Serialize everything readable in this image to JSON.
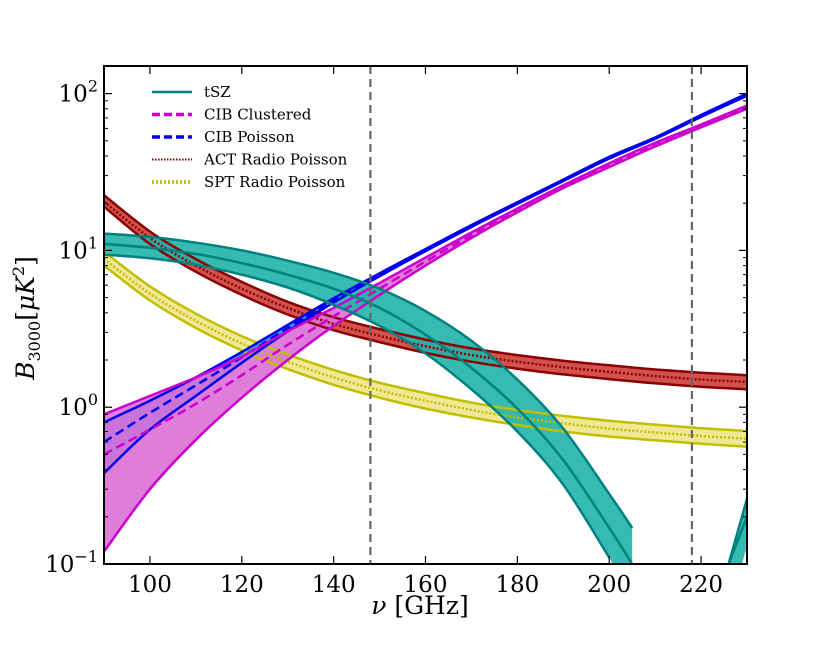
{
  "chart_data": {
    "type": "line",
    "title": "",
    "xlabel": "ν [GHz]",
    "ylabel": "B3000[μK2]",
    "ylabel_parts": {
      "symbol": "B",
      "subscript": "3000",
      "open": "[",
      "unit": "μK",
      "exponent": "2",
      "close": "]"
    },
    "xlabel_parts": {
      "symbol": "ν",
      "unit": " [GHz]"
    },
    "xscale": "linear",
    "yscale": "log",
    "xlim": [
      90,
      230
    ],
    "ylim": [
      0.1,
      150
    ],
    "x_ticks": [
      {
        "value": 100,
        "label": "100"
      },
      {
        "value": 120,
        "label": "120"
      },
      {
        "value": 140,
        "label": "140"
      },
      {
        "value": 160,
        "label": "160"
      },
      {
        "value": 180,
        "label": "180"
      },
      {
        "value": 200,
        "label": "200"
      },
      {
        "value": 220,
        "label": "220"
      }
    ],
    "y_ticks": [
      {
        "value": 0.1,
        "base": "10",
        "exp": "−1"
      },
      {
        "value": 1,
        "base": "10",
        "exp": "0"
      },
      {
        "value": 10,
        "base": "10",
        "exp": "1"
      },
      {
        "value": 100,
        "base": "10",
        "exp": "2"
      }
    ],
    "vlines": [
      148,
      218
    ],
    "legend_position": "top-left",
    "x": [
      90,
      100,
      110,
      120,
      130,
      140,
      150,
      160,
      170,
      180,
      190,
      200,
      210,
      220,
      230
    ],
    "series": [
      {
        "name": "tSZ",
        "line_style": "solid",
        "color": "#008080",
        "band_fill": "#20b2aa",
        "x": [
          90,
          100,
          110,
          120,
          130,
          140,
          150,
          160,
          170,
          180,
          190,
          200,
          205,
          215,
          220,
          226,
          230
        ],
        "center": [
          11.0,
          10.4,
          9.5,
          8.3,
          7.0,
          5.7,
          4.3,
          2.9,
          1.78,
          0.98,
          0.46,
          0.17,
          0.1,
          null,
          null,
          0.1,
          0.2
        ],
        "lower": [
          9.4,
          8.9,
          8.1,
          7.0,
          5.8,
          4.5,
          3.3,
          2.2,
          1.3,
          0.7,
          0.32,
          0.11,
          null,
          null,
          null,
          null,
          0.13
        ],
        "upper": [
          12.8,
          12.2,
          11.2,
          10.0,
          8.6,
          7.2,
          5.7,
          4.1,
          2.65,
          1.5,
          0.73,
          0.28,
          0.17,
          null,
          null,
          0.1,
          0.26
        ]
      },
      {
        "name": "CIB Clustered",
        "line_style": "dashed",
        "color": "#cc00cc",
        "band_fill": "#da70d6",
        "x": [
          90,
          100,
          110,
          120,
          130,
          140,
          150,
          160,
          170,
          180,
          190,
          200,
          210,
          220,
          230
        ],
        "center": [
          0.5,
          0.72,
          1.05,
          1.6,
          2.5,
          3.8,
          5.7,
          8.5,
          12.5,
          18.0,
          25.5,
          35.0,
          47.0,
          62.0,
          82.0
        ],
        "lower": [
          0.12,
          0.3,
          0.62,
          1.15,
          2.0,
          3.3,
          5.2,
          8.0,
          12.0,
          17.5,
          25.0,
          34.0,
          46.0,
          61.0,
          80.0
        ],
        "upper": [
          0.9,
          1.18,
          1.55,
          2.1,
          3.05,
          4.3,
          6.2,
          9.0,
          13.0,
          18.5,
          26.0,
          36.0,
          48.5,
          63.5,
          84.0
        ]
      },
      {
        "name": "CIB Poisson",
        "line_style": "dashed",
        "color": "#0000ee",
        "band_fill": "#1e90ff",
        "x": [
          90,
          100,
          110,
          120,
          130,
          140,
          150,
          160,
          170,
          180,
          190,
          200,
          210,
          220,
          230
        ],
        "center": [
          0.6,
          0.92,
          1.38,
          2.08,
          3.2,
          4.8,
          7.0,
          10.0,
          14.3,
          20.0,
          28.0,
          39.0,
          52.0,
          72.0,
          98.0
        ],
        "lower": [
          0.38,
          0.72,
          1.18,
          1.92,
          3.05,
          4.65,
          6.85,
          9.9,
          14.1,
          19.8,
          27.7,
          38.5,
          51.5,
          71.0,
          97.0
        ],
        "upper": [
          0.8,
          1.1,
          1.55,
          2.25,
          3.35,
          4.95,
          7.15,
          10.2,
          14.5,
          20.3,
          28.3,
          39.5,
          52.5,
          73.0,
          100.0
        ]
      },
      {
        "name": "ACT Radio Poisson",
        "line_style": "dotted",
        "color": "#8b0000",
        "band_fill": "#cd3f3c",
        "x": [
          90,
          100,
          110,
          120,
          130,
          140,
          150,
          160,
          170,
          180,
          190,
          200,
          210,
          220,
          230
        ],
        "center": [
          20.5,
          12.0,
          8.0,
          5.7,
          4.3,
          3.4,
          2.85,
          2.45,
          2.15,
          1.95,
          1.8,
          1.68,
          1.58,
          1.5,
          1.45
        ],
        "lower": [
          19.0,
          11.0,
          7.3,
          5.2,
          3.9,
          3.1,
          2.6,
          2.22,
          1.95,
          1.76,
          1.62,
          1.51,
          1.42,
          1.35,
          1.3
        ],
        "upper": [
          22.5,
          13.2,
          8.8,
          6.3,
          4.7,
          3.75,
          3.15,
          2.7,
          2.37,
          2.15,
          1.98,
          1.85,
          1.74,
          1.66,
          1.6
        ]
      },
      {
        "name": "SPT Radio Poisson",
        "line_style": "dotted",
        "color": "#bfbf00",
        "band_fill": "#f0e68c",
        "x": [
          90,
          100,
          110,
          120,
          130,
          140,
          150,
          160,
          170,
          180,
          190,
          200,
          210,
          220,
          230
        ],
        "center": [
          8.8,
          5.3,
          3.55,
          2.55,
          1.95,
          1.55,
          1.28,
          1.1,
          0.96,
          0.86,
          0.79,
          0.73,
          0.69,
          0.655,
          0.63
        ],
        "lower": [
          8.0,
          4.8,
          3.2,
          2.3,
          1.75,
          1.39,
          1.15,
          0.98,
          0.86,
          0.77,
          0.7,
          0.65,
          0.615,
          0.585,
          0.56
        ],
        "upper": [
          9.8,
          5.9,
          3.95,
          2.84,
          2.17,
          1.73,
          1.43,
          1.23,
          1.07,
          0.96,
          0.88,
          0.82,
          0.775,
          0.735,
          0.705
        ]
      }
    ]
  }
}
